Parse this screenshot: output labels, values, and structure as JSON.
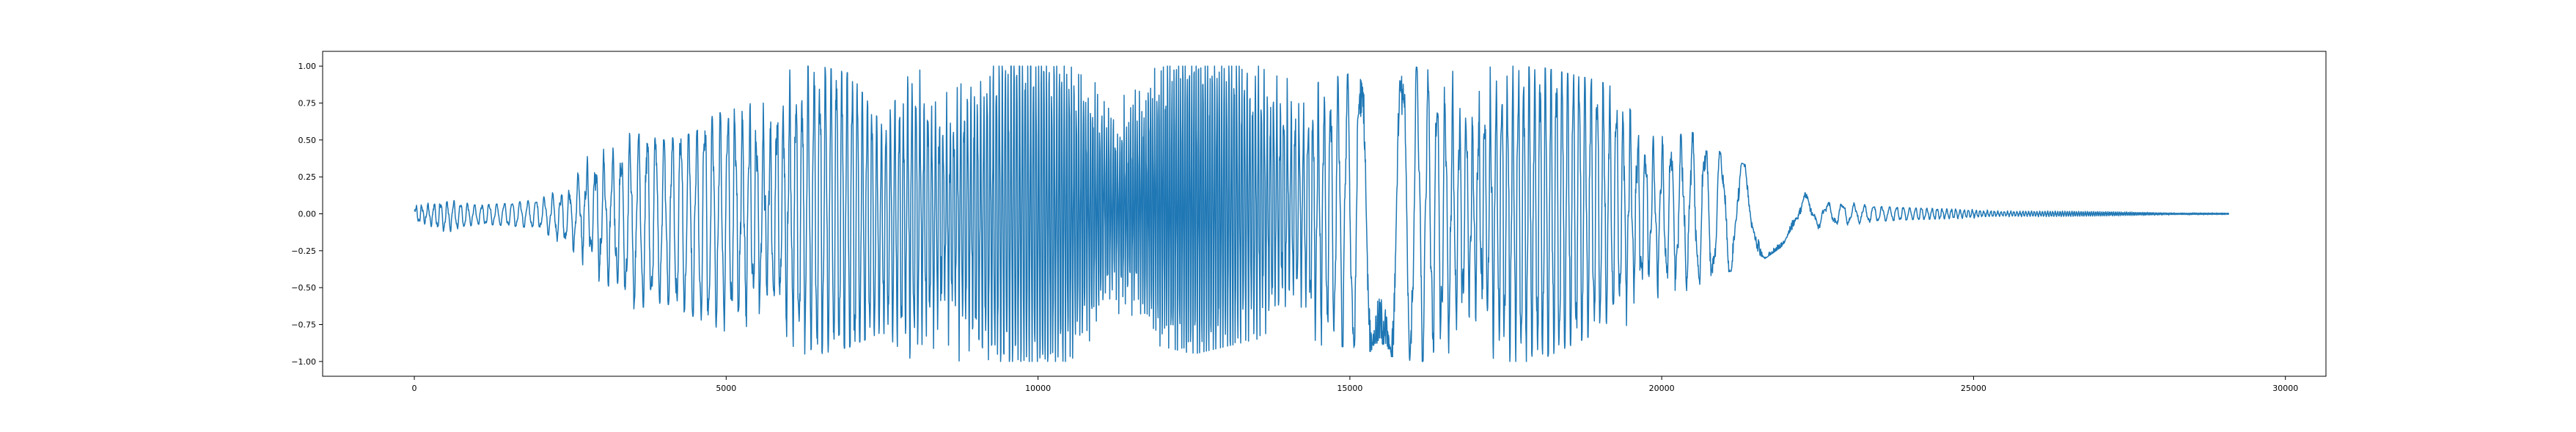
{
  "chart_data": {
    "type": "line",
    "title": "",
    "xlabel": "",
    "ylabel": "",
    "xlim": [
      -1470,
      30650
    ],
    "ylim": [
      -1.1,
      1.1
    ],
    "x_ticks": [
      0,
      5000,
      10000,
      15000,
      20000,
      25000,
      30000
    ],
    "x_tick_labels": [
      "0",
      "5000",
      "10000",
      "15000",
      "20000",
      "25000",
      "30000"
    ],
    "y_ticks": [
      1.0,
      0.75,
      0.5,
      0.25,
      0.0,
      -0.25,
      -0.5,
      -0.75,
      -1.0
    ],
    "y_tick_labels": [
      "1.00",
      "0.75",
      "0.50",
      "0.25",
      "0.00",
      "−0.25",
      "−0.50",
      "−0.75",
      "−1.00"
    ],
    "grid": false,
    "legend": "none",
    "series": [
      {
        "color": "#1f77b4",
        "sample_count": 29100,
        "envelope": {
          "x": [
            0,
            500,
            1000,
            1500,
            2000,
            2500,
            2700,
            3000,
            3500,
            4000,
            4500,
            5000,
            5500,
            5800,
            6000,
            6500,
            7000,
            7500,
            8000,
            8500,
            9000,
            9500,
            10000,
            10500,
            11000,
            11500,
            12000,
            12500,
            13000,
            13500,
            14000,
            14500,
            15000,
            15500,
            16000,
            16500,
            17000,
            17500,
            18000,
            18500,
            19000,
            19500,
            20000,
            20500,
            21000,
            21500,
            22000,
            22500,
            23000,
            23500,
            24000,
            25000,
            26000,
            27000,
            28000,
            29100
          ],
          "upper": [
            0.08,
            0.1,
            0.06,
            0.07,
            0.1,
            0.2,
            0.45,
            0.5,
            0.55,
            0.5,
            0.55,
            0.75,
            0.85,
            0.95,
            1.0,
            1.0,
            0.95,
            0.6,
            1.0,
            1.0,
            1.0,
            1.0,
            1.0,
            1.0,
            0.9,
            0.95,
            1.0,
            1.0,
            1.0,
            1.0,
            1.0,
            0.9,
            0.95,
            1.0,
            1.0,
            0.95,
            1.0,
            1.0,
            1.0,
            0.95,
            0.9,
            0.8,
            0.6,
            0.55,
            0.4,
            0.3,
            0.2,
            0.12,
            0.08,
            0.05,
            0.04,
            0.03,
            0.02,
            0.015,
            0.01,
            0.005
          ],
          "lower": [
            -0.08,
            -0.13,
            -0.07,
            -0.08,
            -0.1,
            -0.25,
            -0.4,
            -0.55,
            -0.65,
            -0.6,
            -0.7,
            -0.8,
            -0.85,
            -0.9,
            -0.95,
            -0.95,
            -0.9,
            -0.8,
            -1.0,
            -1.0,
            -1.0,
            -1.0,
            -1.0,
            -1.0,
            -0.8,
            -0.85,
            -0.9,
            -0.95,
            -0.9,
            -0.85,
            -0.85,
            -0.9,
            -0.9,
            -0.95,
            -1.0,
            -1.0,
            -0.95,
            -1.0,
            -1.0,
            -0.9,
            -0.8,
            -0.75,
            -0.6,
            -0.5,
            -0.4,
            -0.35,
            -0.2,
            -0.12,
            -0.08,
            -0.05,
            -0.04,
            -0.03,
            -0.02,
            -0.015,
            -0.01,
            -0.005
          ]
        }
      }
    ]
  }
}
